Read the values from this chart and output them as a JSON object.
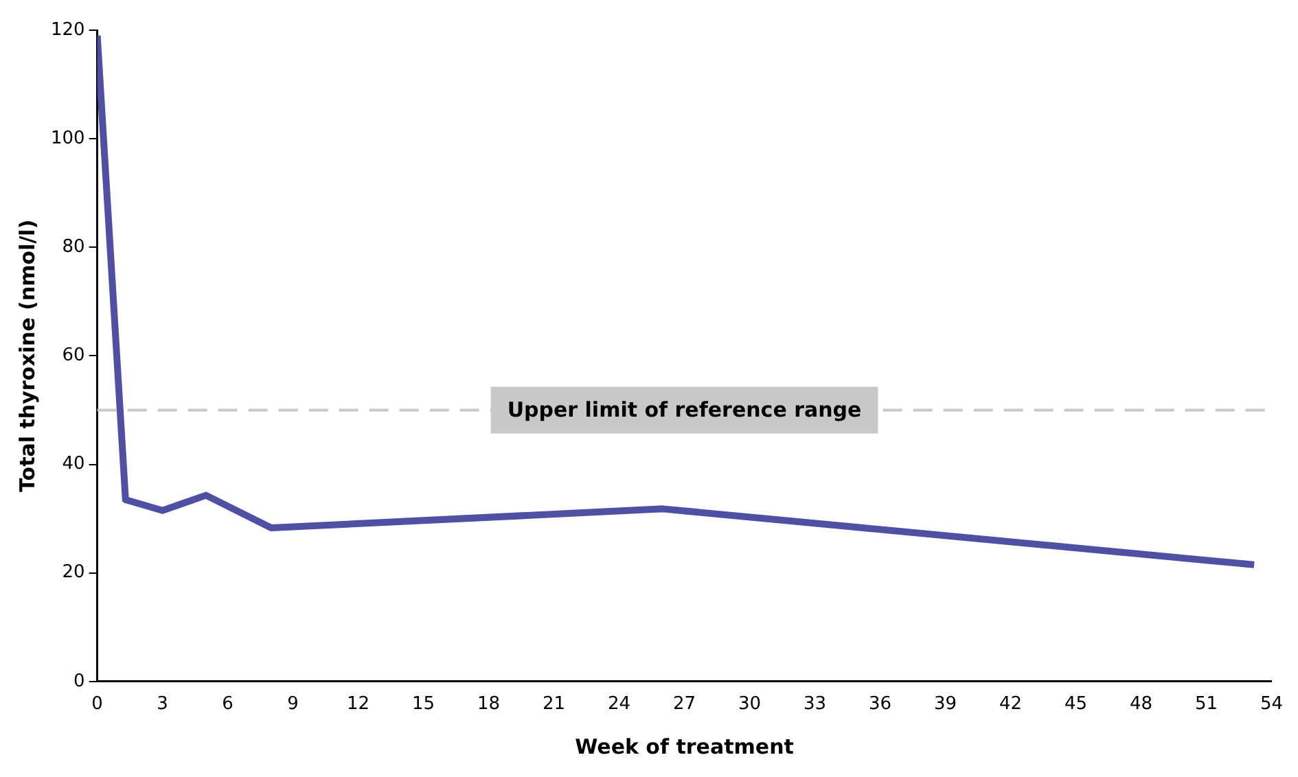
{
  "chart_data": {
    "type": "line",
    "xlabel": "Week of treatment",
    "ylabel": "Total thyroxine (nmol/l)",
    "x": [
      0,
      1.3,
      3,
      5,
      8,
      26,
      53.2
    ],
    "series": [
      {
        "color": "#4f4fa3",
        "values": [
          119,
          33.5,
          31.5,
          34.3,
          28.3,
          31.8,
          21.5
        ]
      }
    ],
    "xlim": [
      0,
      54
    ],
    "xticks": [
      0,
      3,
      6,
      9,
      12,
      15,
      18,
      21,
      24,
      27,
      30,
      33,
      36,
      39,
      42,
      45,
      48,
      51,
      54
    ],
    "ylim": [
      0,
      120
    ],
    "yticks": [
      0,
      20,
      40,
      60,
      80,
      100,
      120
    ],
    "ref_lines": [
      {
        "axis": "y",
        "value": 50,
        "label": "Upper limit of reference range",
        "color": "#c8c8c8",
        "line_style": "dashed"
      }
    ],
    "grid": false,
    "legend": false,
    "marker": "none",
    "line_style": "solid"
  }
}
